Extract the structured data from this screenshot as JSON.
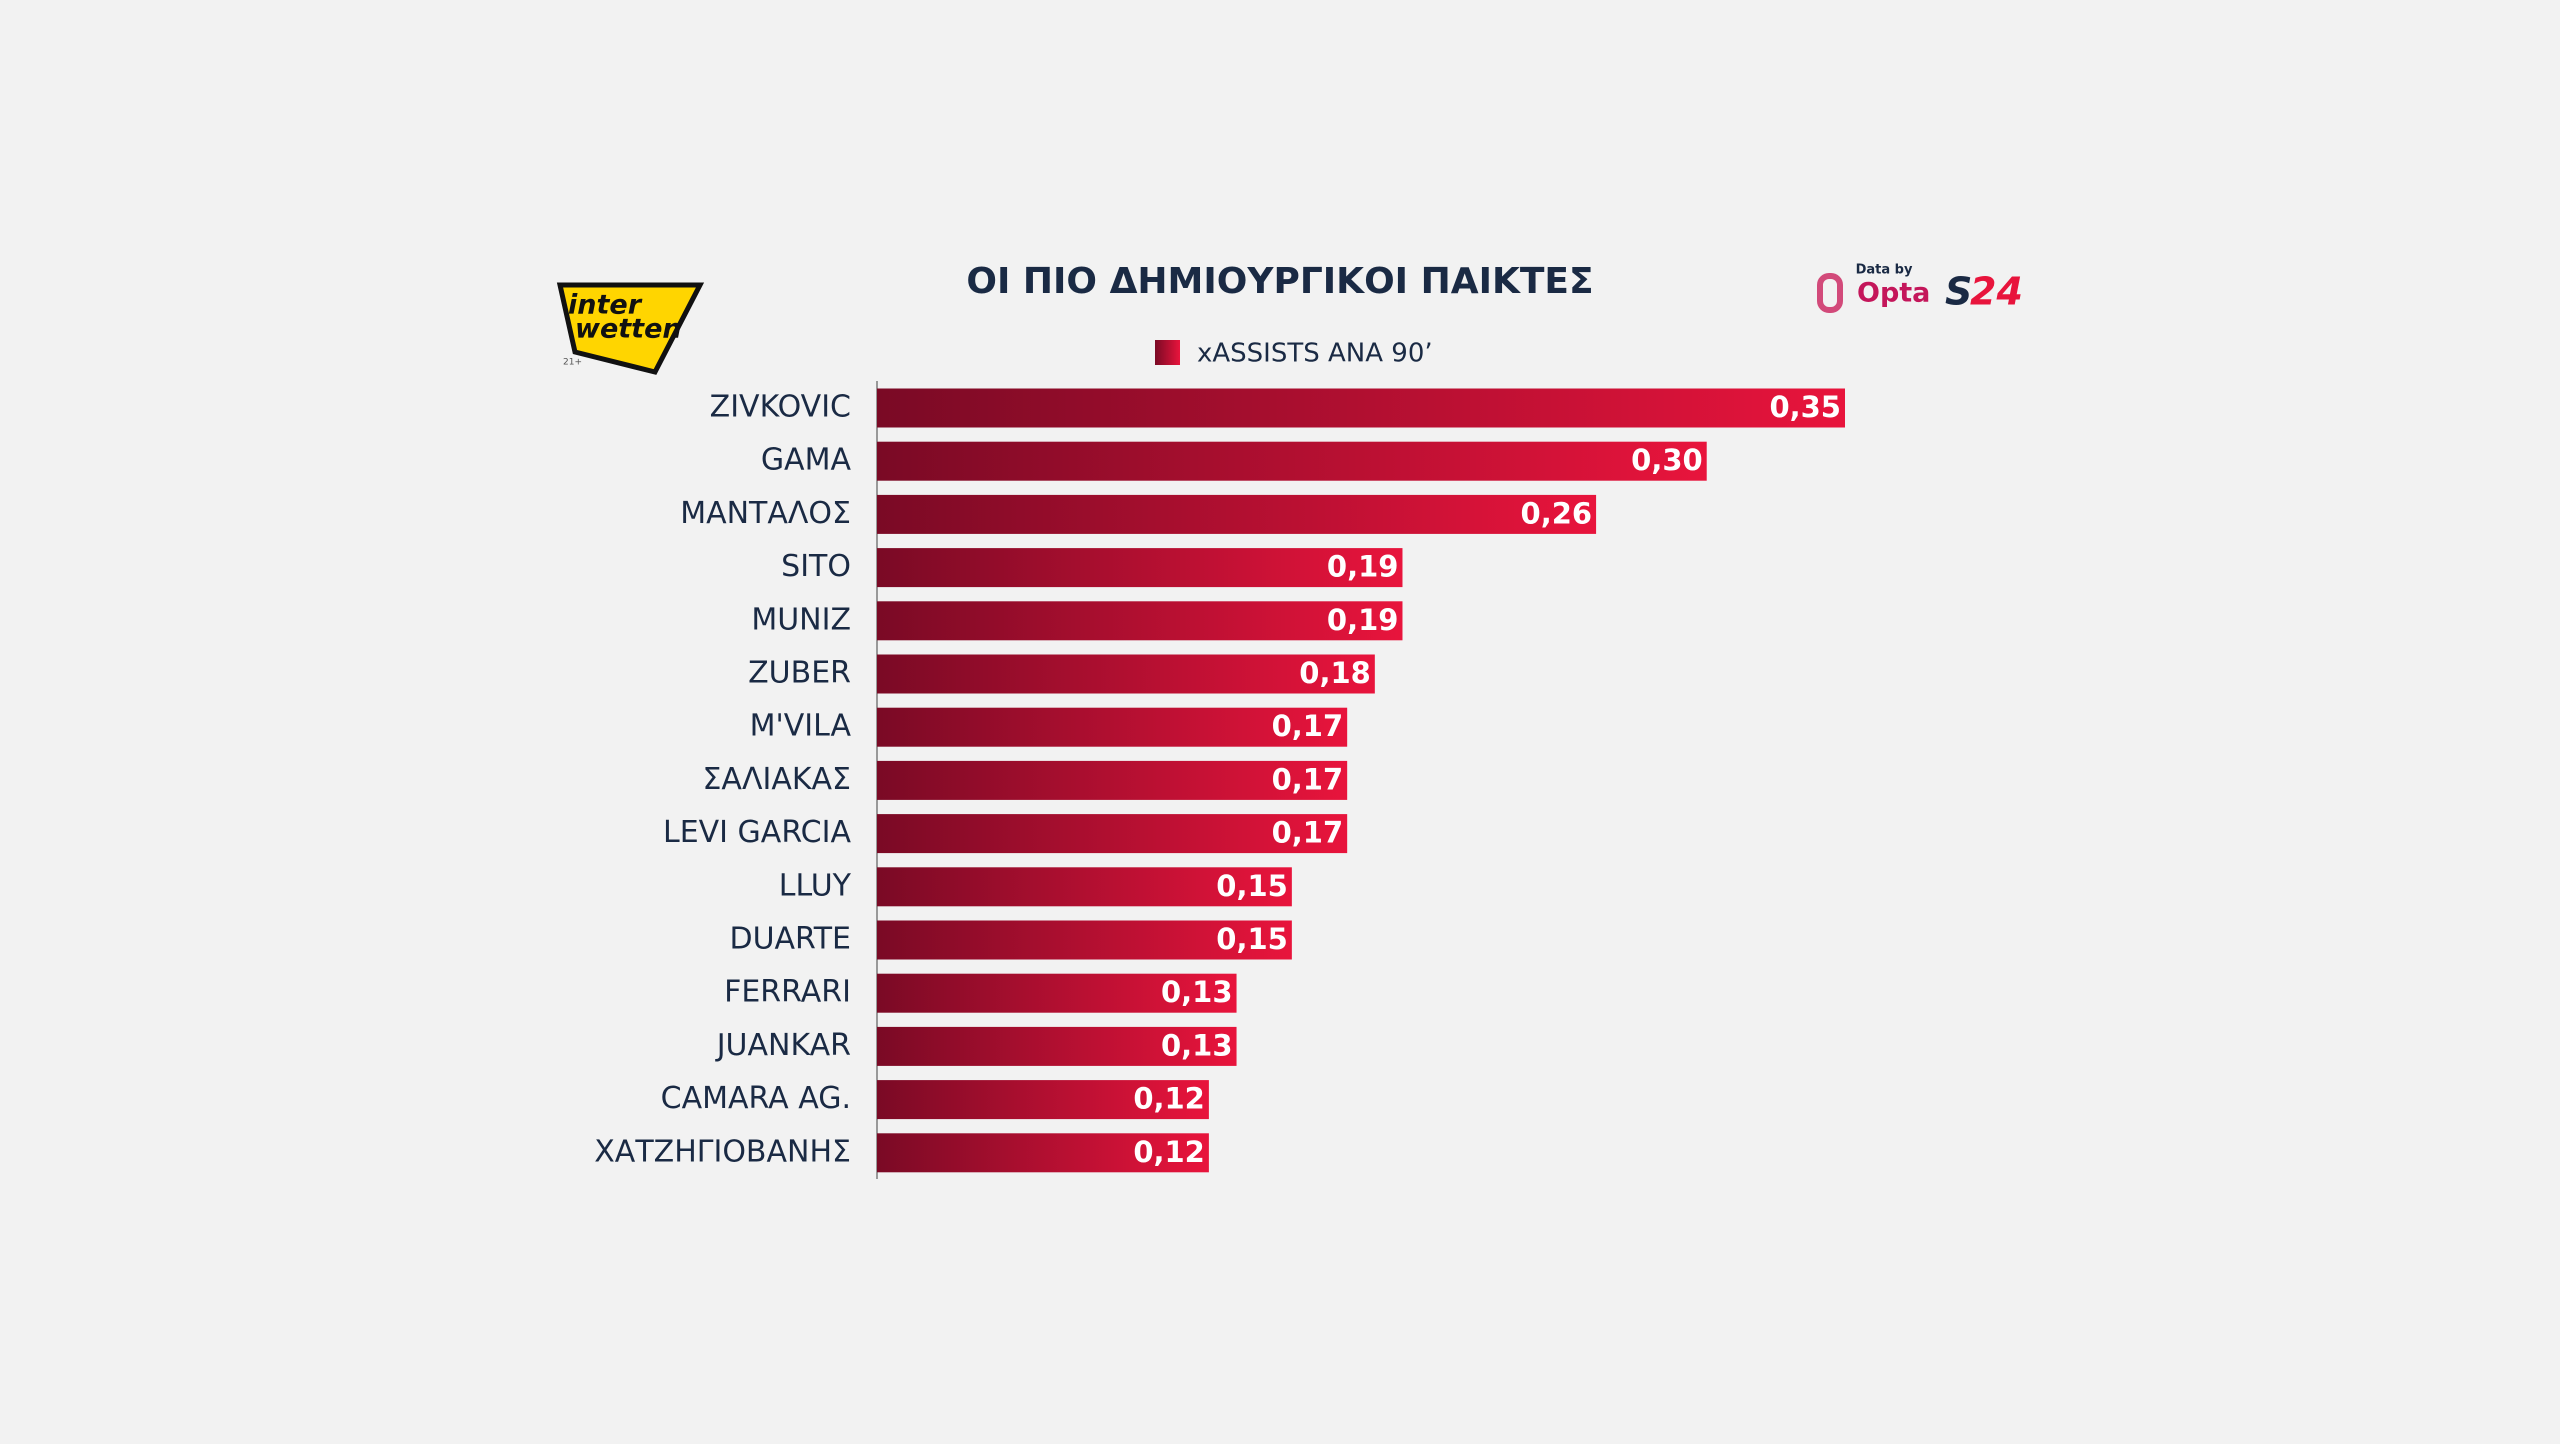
{
  "chart_data": {
    "type": "barh",
    "title": "ΟΙ ΠΙΟ ΔΗΜΙΟΥΡΓΙΚΟΙ ΠΑΙΚΤΕΣ",
    "categories": [
      "ZIVKOVIC",
      "GAMA",
      "ΜΑΝΤΑΛΟΣ",
      "SITO",
      "MUNIZ",
      "ZUBER",
      "M'VILA",
      "ΣΑΛΙΑΚΑΣ",
      "LEVI GARCIA",
      "LLUY",
      "DUARTE",
      "FERRARI",
      "JUANKAR",
      "CAMARA AG.",
      "ΧΑΤΖΗΓΙΟΒΑΝΗΣ"
    ],
    "series": [
      {
        "name": "xASSISTS ΑΝΑ 90’",
        "color": "#e8143c",
        "values": [
          0.35,
          0.3,
          0.26,
          0.19,
          0.19,
          0.18,
          0.17,
          0.17,
          0.17,
          0.15,
          0.15,
          0.13,
          0.13,
          0.12,
          0.12
        ],
        "value_labels": [
          "0,35",
          "0,30",
          "0,26",
          "0,19",
          "0,19",
          "0,18",
          "0,17",
          "0,17",
          "0,17",
          "0,15",
          "0,15",
          "0,13",
          "0,13",
          "0,12",
          "0,12"
        ]
      }
    ]
  },
  "logos": {
    "sponsor_top": "inter",
    "sponsor_bottom": "wetten",
    "age": "21+",
    "data_by": "Data by",
    "opta": "Opta",
    "site_s": "S",
    "site_num": "24"
  }
}
